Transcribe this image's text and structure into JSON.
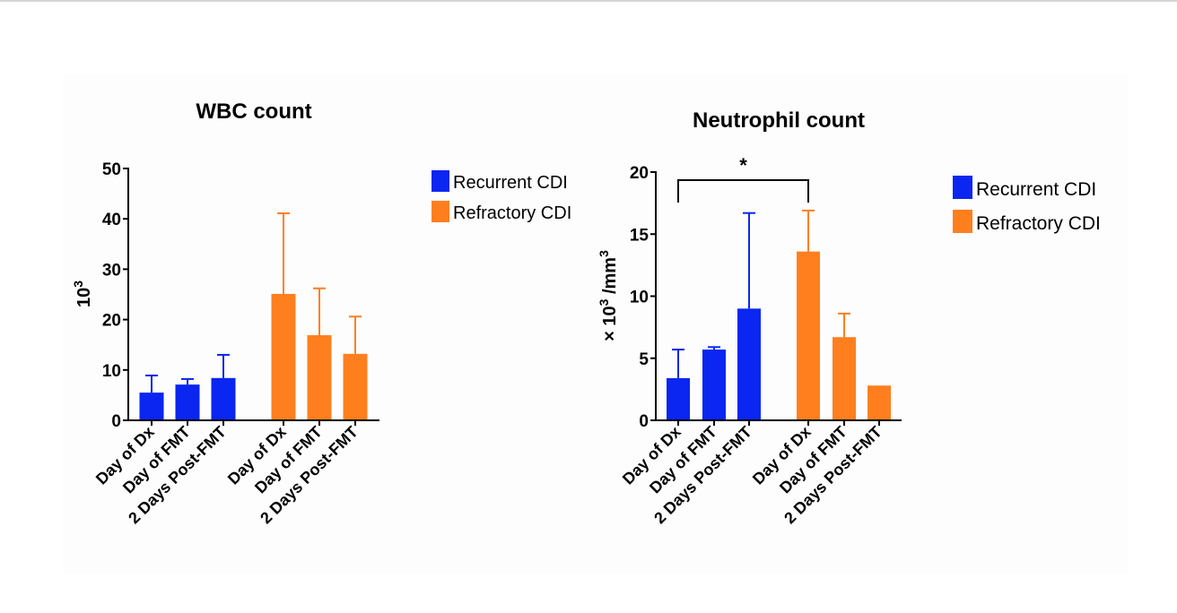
{
  "chart_data": [
    {
      "type": "bar",
      "title": "WBC count",
      "xlabel": "",
      "ylabel": "10³",
      "ylim": [
        0,
        50
      ],
      "yticks": [
        0,
        10,
        20,
        30,
        40,
        50
      ],
      "categories": [
        "Day of Dx",
        "Day of FMT",
        "2 Days Post-FMT"
      ],
      "series": [
        {
          "name": "Recurrent CDI",
          "color": "#0a26f0",
          "values": [
            5.5,
            7.1,
            8.4
          ],
          "error_upper": [
            8.9,
            8.2,
            13.0
          ]
        },
        {
          "name": "Refractory CDI",
          "color": "#ff7f1f",
          "values": [
            25.1,
            16.9,
            13.2
          ],
          "error_upper": [
            41.1,
            26.2,
            20.6
          ]
        }
      ],
      "legend": "right",
      "grid": false
    },
    {
      "type": "bar",
      "title": "Neutrophil count",
      "xlabel": "",
      "ylabel": "× 10³ /mm³",
      "ylim": [
        0,
        20
      ],
      "yticks": [
        0,
        5,
        10,
        15,
        20
      ],
      "categories": [
        "Day of Dx",
        "Day of FMT",
        "2 Days Post-FMT"
      ],
      "series": [
        {
          "name": "Recurrent CDI",
          "color": "#0a26f0",
          "values": [
            3.4,
            5.7,
            9.0
          ],
          "error_upper": [
            5.7,
            5.9,
            16.7
          ]
        },
        {
          "name": "Refractory CDI",
          "color": "#ff7f1f",
          "values": [
            13.6,
            6.7,
            2.8
          ],
          "error_upper": [
            16.9,
            8.6,
            null
          ]
        }
      ],
      "annotation": {
        "text": "*",
        "between": [
          "Recurrent CDI: Day of Dx",
          "Refractory CDI: Day of Dx"
        ]
      },
      "legend": "right",
      "grid": false
    }
  ]
}
